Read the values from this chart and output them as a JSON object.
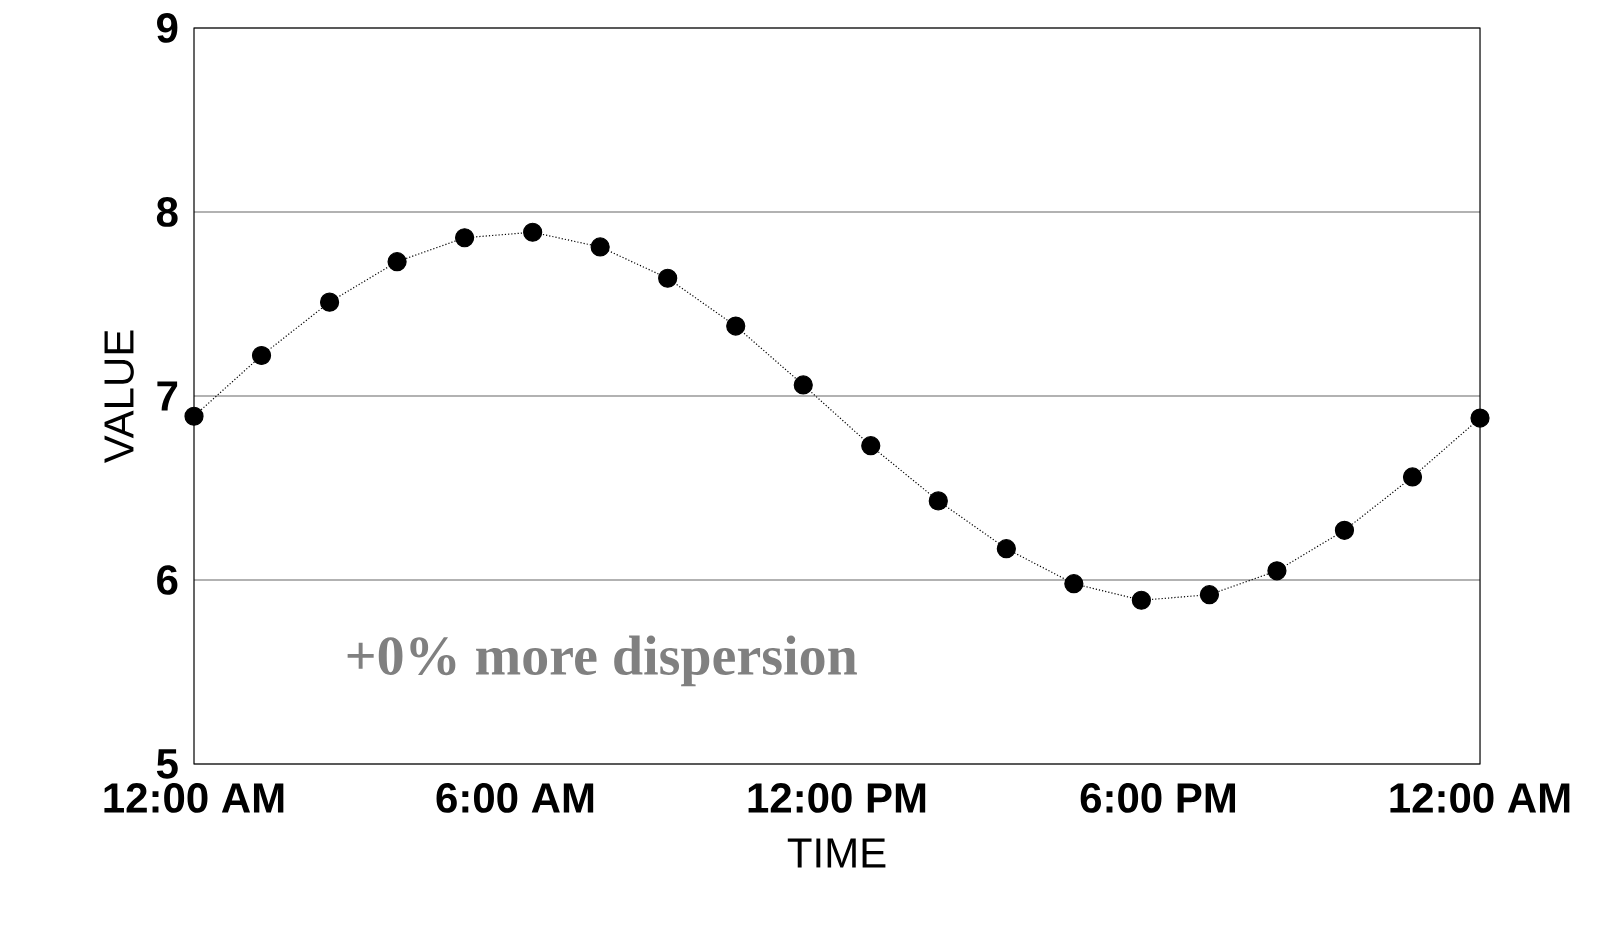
{
  "chart_data": {
    "type": "line",
    "xlabel": "TIME",
    "ylabel": "VALUE",
    "x": [
      0,
      1.26,
      2.53,
      3.79,
      5.05,
      6.32,
      7.58,
      8.84,
      10.11,
      11.37,
      12.63,
      13.89,
      15.16,
      16.42,
      17.68,
      18.95,
      20.21,
      21.47,
      22.74,
      24
    ],
    "series": [
      {
        "color": "#000000",
        "values": [
          6.89,
          7.22,
          7.51,
          7.73,
          7.86,
          7.89,
          7.81,
          7.64,
          7.38,
          7.06,
          6.73,
          6.43,
          6.17,
          5.98,
          5.89,
          5.92,
          6.05,
          6.27,
          6.56,
          6.88
        ]
      }
    ],
    "xlim": [
      0,
      24
    ],
    "ylim": [
      5,
      9
    ],
    "xticks": [
      {
        "value": 0,
        "label": "12:00 AM"
      },
      {
        "value": 6,
        "label": "6:00 AM"
      },
      {
        "value": 12,
        "label": "12:00 PM"
      },
      {
        "value": 18,
        "label": "6:00 PM"
      },
      {
        "value": 24,
        "label": "12:00 AM"
      }
    ],
    "yticks": [
      5,
      6,
      7,
      8,
      9
    ],
    "grid": "y",
    "marker": "circle",
    "line_style": "dotted",
    "annotations": [
      "+0% more dispersion"
    ]
  }
}
